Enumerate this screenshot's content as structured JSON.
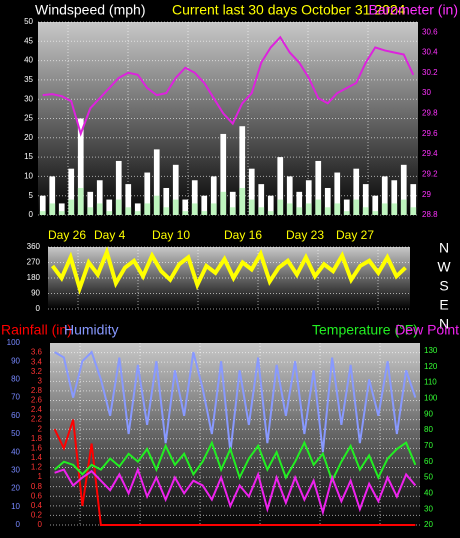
{
  "chart_data": [
    {
      "type": "combo",
      "title": "Current last 30 days October 31 2024",
      "ylabel": "Windspeed (mph)",
      "y2label": "Barometer (in)",
      "date_labels": [
        "Day 26",
        "Day 4",
        "Day 10",
        "Day 16",
        "Day 23",
        "Day 27"
      ],
      "ylim": [
        0,
        50
      ],
      "yticks": [
        0,
        5,
        10,
        15,
        20,
        25,
        30,
        35,
        40,
        45,
        50
      ],
      "ycolor": "#ffffff",
      "y2lim": [
        28.8,
        30.7
      ],
      "y2ticks": [
        28.8,
        29,
        29.2,
        29.4,
        29.6,
        29.8,
        30,
        30.2,
        30.4,
        30.6
      ],
      "y2color": "#ff33ff",
      "grid": true,
      "series": [
        {
          "type": "bar",
          "color": "#ffffff",
          "values": [
            5,
            10,
            3,
            12,
            25,
            6,
            9,
            4,
            14,
            8,
            3,
            11,
            17,
            7,
            13,
            4,
            9,
            5,
            10,
            21,
            6,
            23,
            12,
            8,
            5,
            15,
            10,
            6,
            9,
            14,
            7,
            11,
            4,
            12,
            8,
            5,
            10,
            9,
            13,
            8
          ]
        },
        {
          "type": "bar",
          "color": "#bff5bf",
          "values": [
            1,
            3,
            1,
            4,
            7,
            2,
            3,
            1,
            4,
            2,
            1,
            3,
            5,
            2,
            4,
            1,
            3,
            1,
            3,
            6,
            2,
            7,
            4,
            2,
            1,
            4,
            3,
            2,
            3,
            4,
            2,
            3,
            1,
            4,
            2,
            1,
            3,
            3,
            4,
            2
          ]
        },
        {
          "type": "line",
          "color": "#dd22dd",
          "axis": "y2",
          "values": [
            29.98,
            29.99,
            29.97,
            29.92,
            29.6,
            29.85,
            29.95,
            30.05,
            30.15,
            30.2,
            30.18,
            30.05,
            29.98,
            30.0,
            30.15,
            30.25,
            30.2,
            30.1,
            29.95,
            29.8,
            29.7,
            29.9,
            30.0,
            30.3,
            30.45,
            30.55,
            30.4,
            30.3,
            30.15,
            29.95,
            29.9,
            30.0,
            30.05,
            30.1,
            30.3,
            30.45,
            30.42,
            30.4,
            30.38,
            30.18
          ]
        }
      ]
    },
    {
      "type": "line",
      "compass": [
        "N",
        "W",
        "S",
        "E",
        "N"
      ],
      "ylim": [
        0,
        360
      ],
      "yticks": [
        0,
        90,
        180,
        270,
        360
      ],
      "ycolor": "#ffffff",
      "grid": true,
      "series": [
        {
          "type": "line",
          "color": "#ffff00",
          "values": [
            250,
            180,
            300,
            120,
            270,
            200,
            330,
            150,
            240,
            280,
            190,
            310,
            220,
            170,
            260,
            300,
            140,
            250,
            210,
            290,
            180,
            270,
            230,
            320,
            160,
            240,
            280,
            200,
            300,
            190,
            260,
            220,
            310,
            170,
            250,
            280,
            210,
            300,
            190,
            240
          ]
        }
      ]
    },
    {
      "type": "line",
      "ylim": [
        0,
        3.8
      ],
      "yticks": [
        0,
        0.2,
        0.4,
        0.6,
        0.8,
        1,
        1.2,
        1.4,
        1.6,
        1.8,
        2,
        2.2,
        2.4,
        2.6,
        2.8,
        3,
        3.2,
        3.4,
        3.6
      ],
      "ycolor": "#ff3333",
      "y2lim": [
        20,
        135
      ],
      "y2ticks": [
        20,
        30,
        40,
        50,
        60,
        70,
        80,
        90,
        100,
        110,
        120,
        130
      ],
      "y2color": "#33ff33",
      "y3lim": [
        0,
        100
      ],
      "y3ticks": [
        0,
        10,
        20,
        30,
        40,
        50,
        60,
        70,
        80,
        90,
        100
      ],
      "y3color": "#7788ff",
      "grid": true,
      "series": [
        {
          "name": "Rainfall (in)",
          "type": "line",
          "color": "#ff0000",
          "values": [
            2.0,
            1.6,
            2.2,
            0.4,
            1.7,
            0,
            0,
            0,
            0,
            0,
            0,
            0,
            0,
            0,
            0,
            0,
            0,
            0,
            0,
            0,
            0,
            0,
            0,
            0,
            0,
            0,
            0,
            0,
            0,
            0,
            0,
            0,
            0,
            0,
            0,
            0,
            0,
            0,
            0,
            0
          ]
        },
        {
          "name": "Humidity",
          "type": "line",
          "color": "#8899ff",
          "axis": "y3",
          "values": [
            95,
            92,
            70,
            90,
            95,
            80,
            60,
            92,
            50,
            88,
            55,
            90,
            45,
            85,
            60,
            95,
            75,
            50,
            90,
            40,
            85,
            55,
            92,
            45,
            88,
            60,
            90,
            50,
            85,
            40,
            92,
            55,
            88,
            45,
            80,
            60,
            90,
            50,
            85,
            70
          ]
        },
        {
          "name": "Temperature (°F)",
          "type": "line",
          "color": "#22ee22",
          "axis": "y2",
          "values": [
            55,
            60,
            58,
            52,
            58,
            55,
            62,
            57,
            65,
            60,
            68,
            55,
            70,
            58,
            65,
            52,
            60,
            72,
            55,
            68,
            50,
            62,
            70,
            55,
            66,
            50,
            60,
            72,
            58,
            65,
            48,
            60,
            70,
            55,
            64,
            50,
            62,
            68,
            72,
            58
          ]
        },
        {
          "name": "Dew Point",
          "type": "line",
          "color": "#ee22ee",
          "axis": "y2",
          "values": [
            53,
            55,
            45,
            50,
            54,
            48,
            42,
            52,
            40,
            55,
            38,
            50,
            36,
            50,
            40,
            48,
            45,
            36,
            50,
            32,
            45,
            38,
            52,
            30,
            50,
            34,
            50,
            36,
            48,
            28,
            50,
            35,
            48,
            30,
            46,
            35,
            50,
            38,
            52,
            45
          ]
        }
      ]
    }
  ]
}
